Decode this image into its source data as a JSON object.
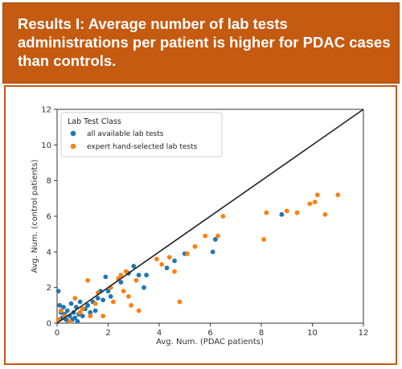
{
  "banner": {
    "title": "Results I: Average number of lab tests administrations per patient is higher for PDAC cases than controls."
  },
  "colors": {
    "banner": "#c55a11",
    "series_blue": "#1f77b4",
    "series_orange": "#ff7f0e"
  },
  "chart_data": {
    "type": "scatter",
    "xlabel": "Avg. Num. (PDAC patients)",
    "ylabel": "Avg. Num. (control patients)",
    "xlim": [
      0,
      12
    ],
    "ylim": [
      0,
      12
    ],
    "xticks": [
      "0",
      "2",
      "4",
      "6",
      "8",
      "10",
      "12"
    ],
    "yticks": [
      "0",
      "2",
      "4",
      "6",
      "8",
      "10",
      "12"
    ],
    "grid": false,
    "legend": {
      "title": "Lab Test Class",
      "placement": "top-left"
    },
    "reference_line": {
      "type": "y=x"
    },
    "series": [
      {
        "name": "all available lab tests",
        "color": "#1f77b4",
        "points": [
          [
            0.05,
            1.8
          ],
          [
            0.1,
            1.0
          ],
          [
            0.15,
            0.6
          ],
          [
            0.2,
            0.3
          ],
          [
            0.25,
            0.9
          ],
          [
            0.3,
            0.5
          ],
          [
            0.35,
            0.2
          ],
          [
            0.4,
            0.7
          ],
          [
            0.45,
            0.1
          ],
          [
            0.5,
            0.4
          ],
          [
            0.55,
            1.1
          ],
          [
            0.6,
            0.2
          ],
          [
            0.65,
            0.6
          ],
          [
            0.7,
            0.3
          ],
          [
            0.75,
            0.9
          ],
          [
            0.8,
            0.1
          ],
          [
            0.85,
            0.5
          ],
          [
            0.9,
            1.2
          ],
          [
            1.0,
            0.4
          ],
          [
            1.1,
            0.8
          ],
          [
            1.2,
            1.0
          ],
          [
            1.3,
            0.6
          ],
          [
            1.4,
            1.2
          ],
          [
            1.5,
            0.7
          ],
          [
            1.6,
            1.4
          ],
          [
            1.7,
            1.8
          ],
          [
            1.8,
            1.3
          ],
          [
            1.9,
            2.6
          ],
          [
            2.0,
            1.8
          ],
          [
            2.1,
            1.5
          ],
          [
            2.5,
            2.3
          ],
          [
            2.8,
            2.8
          ],
          [
            3.0,
            3.2
          ],
          [
            3.2,
            2.7
          ],
          [
            3.4,
            2.0
          ],
          [
            3.5,
            2.7
          ],
          [
            4.3,
            3.1
          ],
          [
            4.6,
            3.5
          ],
          [
            5.0,
            3.9
          ],
          [
            6.1,
            4.0
          ],
          [
            6.2,
            4.7
          ],
          [
            8.8,
            6.1
          ]
        ]
      },
      {
        "name": "expert hand-selected lab tests",
        "color": "#ff7f0e",
        "points": [
          [
            0.05,
            0.2
          ],
          [
            0.15,
            0.7
          ],
          [
            0.3,
            0.4
          ],
          [
            0.5,
            0.1
          ],
          [
            0.7,
            1.4
          ],
          [
            0.9,
            0.6
          ],
          [
            1.0,
            0.8
          ],
          [
            1.2,
            2.4
          ],
          [
            1.3,
            0.4
          ],
          [
            1.5,
            1.1
          ],
          [
            1.6,
            1.7
          ],
          [
            1.8,
            0.4
          ],
          [
            2.1,
            2.0
          ],
          [
            2.2,
            1.2
          ],
          [
            2.4,
            2.5
          ],
          [
            2.5,
            2.7
          ],
          [
            2.6,
            1.8
          ],
          [
            2.7,
            2.9
          ],
          [
            2.8,
            1.5
          ],
          [
            2.9,
            1.0
          ],
          [
            3.1,
            2.4
          ],
          [
            3.2,
            0.7
          ],
          [
            3.9,
            3.6
          ],
          [
            4.1,
            3.3
          ],
          [
            4.4,
            3.7
          ],
          [
            4.6,
            2.9
          ],
          [
            4.8,
            1.2
          ],
          [
            5.1,
            3.9
          ],
          [
            5.4,
            4.3
          ],
          [
            5.8,
            4.9
          ],
          [
            6.3,
            4.9
          ],
          [
            6.5,
            6.0
          ],
          [
            8.1,
            4.7
          ],
          [
            8.2,
            6.2
          ],
          [
            9.0,
            6.3
          ],
          [
            9.4,
            6.2
          ],
          [
            9.9,
            6.7
          ],
          [
            10.1,
            6.8
          ],
          [
            10.2,
            7.2
          ],
          [
            10.5,
            6.1
          ],
          [
            11.0,
            7.2
          ]
        ]
      }
    ]
  }
}
